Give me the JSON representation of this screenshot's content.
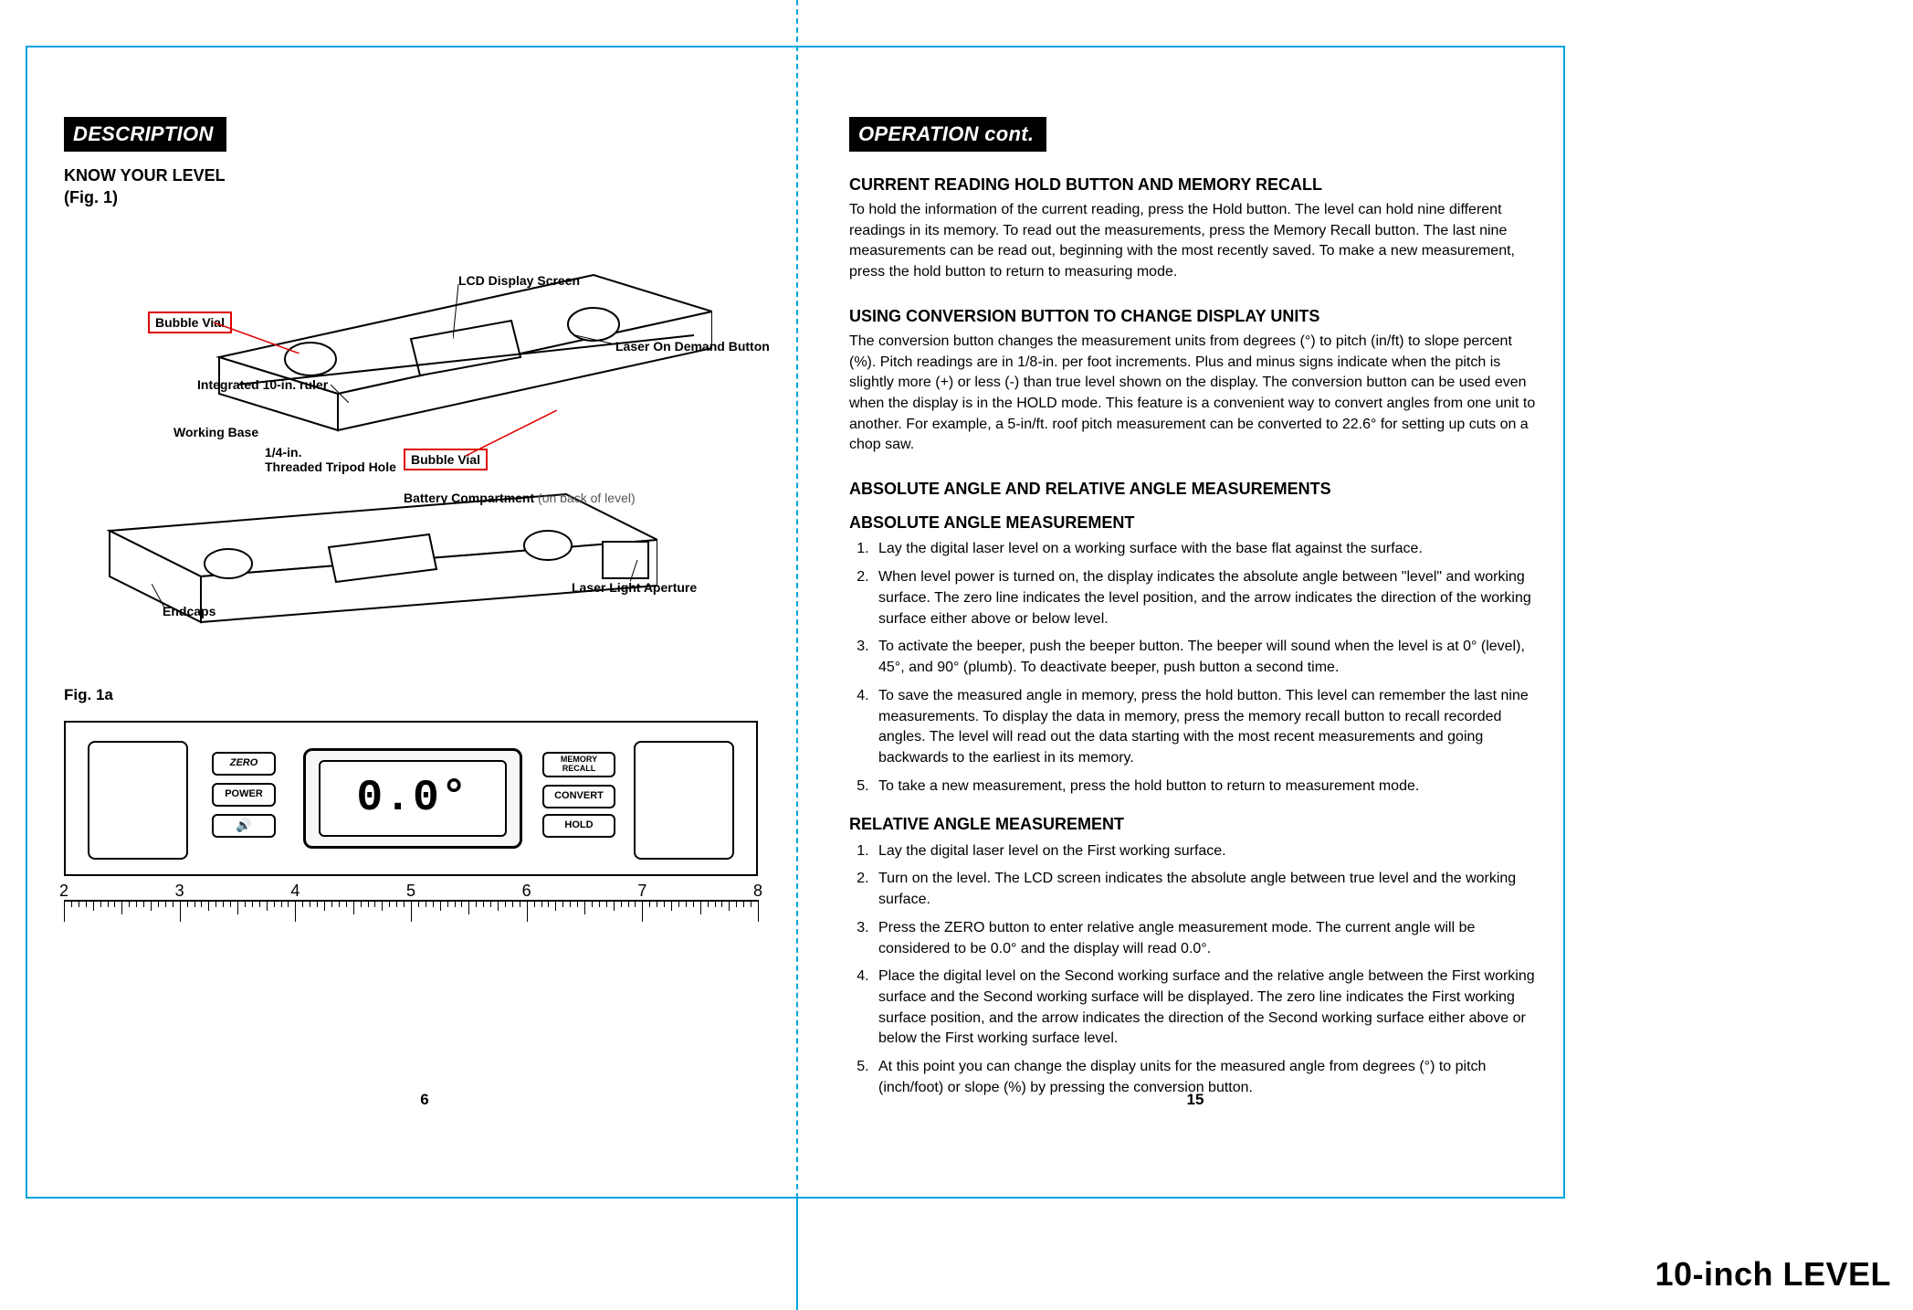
{
  "footer": {
    "product_label": "10-inch LEVEL"
  },
  "colors": {
    "frame": "#00a3e0",
    "redbox_border": "#d00",
    "muted": "#555"
  },
  "left": {
    "tag": "DESCRIPTION",
    "know_title": "KNOW YOUR LEVEL",
    "know_sub": "(Fig. 1)",
    "fig_label": "Fig. 1a",
    "page": "6",
    "callouts": {
      "bubble_vial_1": "Bubble Vial",
      "bubble_vial_2": "Bubble Vial",
      "lcd": "LCD Display Screen",
      "laser_button": "Laser On Demand Button",
      "ruler": "Integrated 10-in. ruler",
      "working_base": "Working Base",
      "tripod_hole_line1": "1/4-in.",
      "tripod_hole_line2": "Threaded Tripod Hole",
      "battery_compartment": "Battery Compartment",
      "battery_compartment_note": " (on back of level)",
      "endcaps": "Endcaps",
      "laser_aperture": "Laser Light Aperture"
    },
    "lcd": {
      "digits": "0.0°",
      "buttons": {
        "zero": "ZERO",
        "power": "POWER",
        "sound": "🔊",
        "memory": "MEMORY RECALL",
        "convert": "CONVERT",
        "hold": "HOLD"
      }
    },
    "ruler": {
      "start": 2,
      "end": 8
    }
  },
  "right": {
    "tag": "OPERATION cont.",
    "page": "15",
    "hold": {
      "heading": "CURRENT READING HOLD BUTTON AND MEMORY RECALL",
      "body": "To hold the information of the current reading, press the Hold button. The level can hold nine different readings in its memory. To read out the measurements, press the Memory Recall button. The last nine measurements can be read out, beginning with the most recently saved. To make a new measurement, press the hold button to return to measuring mode."
    },
    "convert": {
      "heading": "USING CONVERSION BUTTON TO CHANGE DISPLAY UNITS",
      "body": "The conversion button changes the measurement units from degrees (°) to pitch (in/ft) to slope percent (%). Pitch readings are in 1/8-in. per foot increments. Plus and minus signs indicate when the pitch is slightly more (+) or less (-) than true level shown on the display. The conversion button can be used even when the display is in the HOLD mode. This feature is a convenient way to convert angles from one unit to another. For example, a 5-in/ft. roof pitch measurement can be converted to 22.6° for setting up cuts on a chop saw."
    },
    "angles": {
      "heading": "ABSOLUTE ANGLE AND RELATIVE ANGLE MEASUREMENTS",
      "absolute_heading": "ABSOLUTE ANGLE MEASUREMENT",
      "absolute_steps": [
        "Lay the digital laser level on a working surface with the base flat against the surface.",
        "When level power is turned on, the display indicates the absolute angle between \"level\" and working surface.  The zero line indicates the level position, and the arrow indicates the direction of the working surface either above or below level.",
        "To activate the beeper, push the beeper button. The beeper will sound when the level is at 0° (level), 45°, and 90° (plumb). To deactivate beeper, push button a second time.",
        "To save the measured angle in memory, press the hold button. This level can remember the last nine measurements.  To display the data in memory, press the memory recall button to recall recorded angles. The level will read out the data starting with the most recent measurements and going backwards to the earliest in its memory.",
        "To take a new measurement, press the hold button to return to measurement mode."
      ],
      "relative_heading": "RELATIVE ANGLE MEASUREMENT",
      "relative_steps": [
        "Lay the digital laser level on the First working surface.",
        "Turn on the level. The LCD screen indicates the absolute angle between true level and the working surface.",
        "Press the ZERO button to enter relative angle measurement mode.  The current angle will be considered to be 0.0° and the display will read 0.0°.",
        "Place the digital level on the Second working surface and the relative angle between the First working surface and the Second working surface will be displayed.  The zero line indicates the First working surface position, and the arrow indicates the direction of the Second working surface either above or below the First working surface level.",
        "At this point you can change the display units for the measured angle from degrees (°) to pitch (inch/foot) or slope (%) by pressing the conversion button."
      ]
    }
  }
}
